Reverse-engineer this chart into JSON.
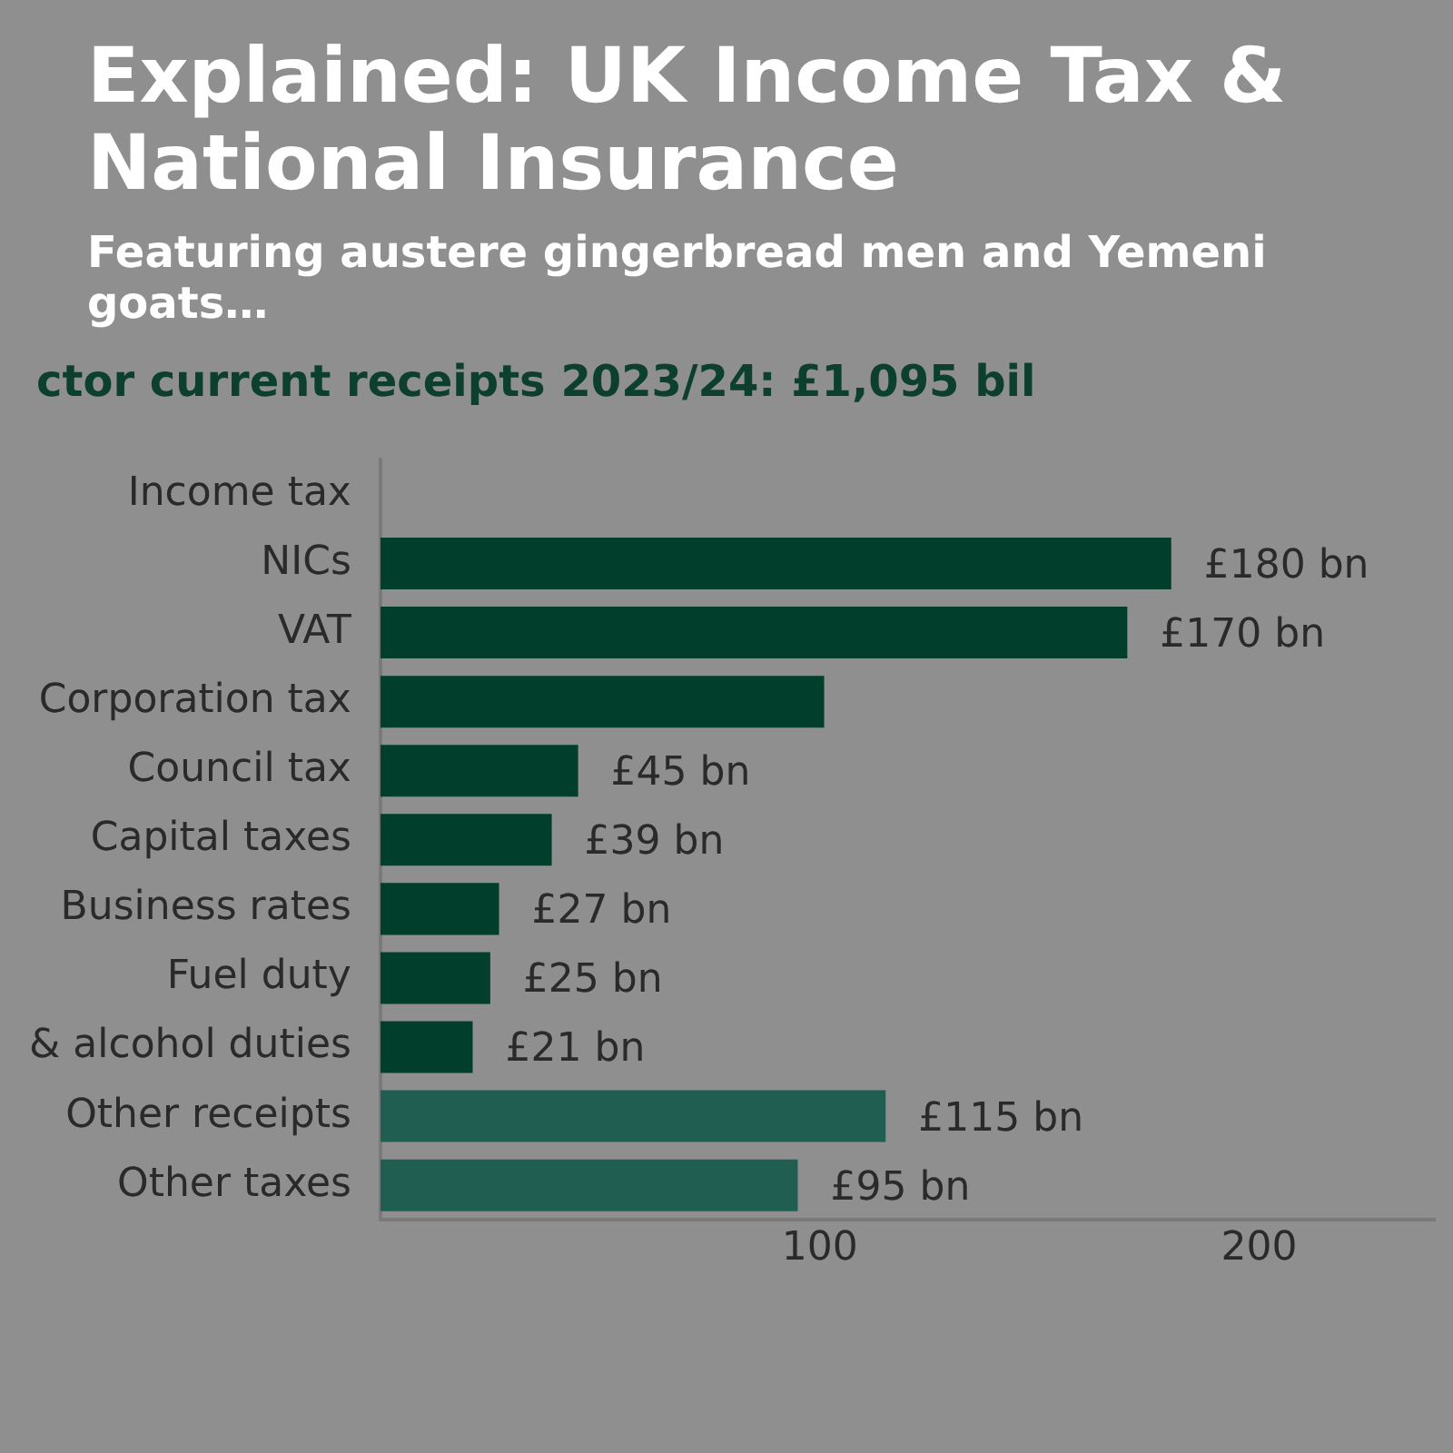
{
  "chart_data": {
    "type": "bar",
    "orientation": "horizontal",
    "title": "Explained: UK Income Tax & National Insurance",
    "subtitle": "Featuring austere gingerbread men and Yemeni goats…",
    "annotations": [
      "ctor current receipts 2023/24: £1,095 bil"
    ],
    "categories": [
      "Income tax",
      "NICs",
      "VAT",
      "Corporation tax",
      "Council tax",
      "Capital taxes",
      "Business rates",
      "Fuel duty",
      "& alcohol duties",
      "Other receipts",
      "Other taxes"
    ],
    "values": [
      null,
      180,
      170,
      101,
      45,
      39,
      27,
      25,
      21,
      115,
      95
    ],
    "value_labels": [
      null,
      "£180 bn",
      "£170 bn",
      null,
      "£45 bn",
      "£39 bn",
      "£27 bn",
      "£25 bn",
      "£21 bn",
      "£115 bn",
      "£95 bn"
    ],
    "colors": [
      "#013f2c",
      "#013f2c",
      "#013f2c",
      "#013f2c",
      "#013f2c",
      "#013f2c",
      "#013f2c",
      "#013f2c",
      "#013f2c",
      "#215e52",
      "#215e52"
    ],
    "xlim": [
      0,
      240
    ],
    "xticks": [
      100,
      200
    ]
  }
}
